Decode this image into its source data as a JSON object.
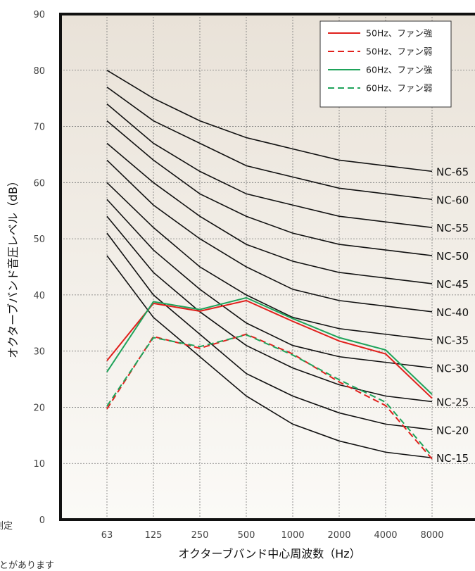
{
  "chart_data": {
    "type": "line",
    "title": "",
    "xlabel": "オクターブバンド中心周波数（Hz）",
    "ylabel": "オクターブバンド音圧レベル（dB）",
    "ylim": [
      0,
      90
    ],
    "yticks": [
      "0",
      "10",
      "20",
      "30",
      "40",
      "50",
      "60",
      "70",
      "80",
      "90"
    ],
    "categories": [
      "63",
      "125",
      "250",
      "500",
      "1000",
      "2000",
      "4000",
      "8000"
    ],
    "grid": true,
    "legend_position": "top-right",
    "nc_curves": [
      {
        "name": "NC-65",
        "values": [
          80,
          75,
          71,
          68,
          66,
          64,
          63,
          62
        ]
      },
      {
        "name": "NC-60",
        "values": [
          77,
          71,
          67,
          63,
          61,
          59,
          58,
          57
        ]
      },
      {
        "name": "NC-55",
        "values": [
          74,
          67,
          62,
          58,
          56,
          54,
          53,
          52
        ]
      },
      {
        "name": "NC-50",
        "values": [
          71,
          64,
          58,
          54,
          51,
          49,
          48,
          47
        ]
      },
      {
        "name": "NC-45",
        "values": [
          67,
          60,
          54,
          49,
          46,
          44,
          43,
          42
        ]
      },
      {
        "name": "NC-40",
        "values": [
          64,
          56,
          50,
          45,
          41,
          39,
          38,
          37
        ]
      },
      {
        "name": "NC-35",
        "values": [
          60,
          52,
          45,
          40,
          36,
          34,
          33,
          32
        ]
      },
      {
        "name": "NC-30",
        "values": [
          57,
          48,
          41,
          35,
          31,
          29,
          28,
          27
        ]
      },
      {
        "name": "NC-25",
        "values": [
          54,
          44,
          37,
          31,
          27,
          24,
          22,
          21
        ]
      },
      {
        "name": "NC-20",
        "values": [
          51,
          40,
          33,
          26,
          22,
          19,
          17,
          16
        ]
      },
      {
        "name": "NC-15",
        "values": [
          47,
          36,
          29,
          22,
          17,
          14,
          12,
          11
        ]
      }
    ],
    "series": [
      {
        "name": "50Hz、ファン強",
        "color": "#e0201c",
        "dashed": false,
        "values": [
          28.3,
          38.5,
          37.1,
          39.0,
          35.3,
          31.8,
          29.5,
          21.6
        ]
      },
      {
        "name": "50Hz、ファン弱",
        "color": "#e0201c",
        "dashed": true,
        "values": [
          19.7,
          32.6,
          30.5,
          33.0,
          29.5,
          24.5,
          20.3,
          10.8
        ]
      },
      {
        "name": "60Hz、ファン強",
        "color": "#1ea35a",
        "dashed": false,
        "values": [
          26.3,
          38.8,
          37.4,
          39.5,
          35.8,
          32.4,
          30.2,
          22.3
        ]
      },
      {
        "name": "60Hz、ファン弱",
        "color": "#1ea35a",
        "dashed": true,
        "values": [
          20.2,
          32.4,
          30.8,
          32.9,
          29.3,
          24.9,
          20.9,
          11.3
        ]
      }
    ]
  },
  "side_texts": [
    "測定",
    "ことがあります"
  ]
}
